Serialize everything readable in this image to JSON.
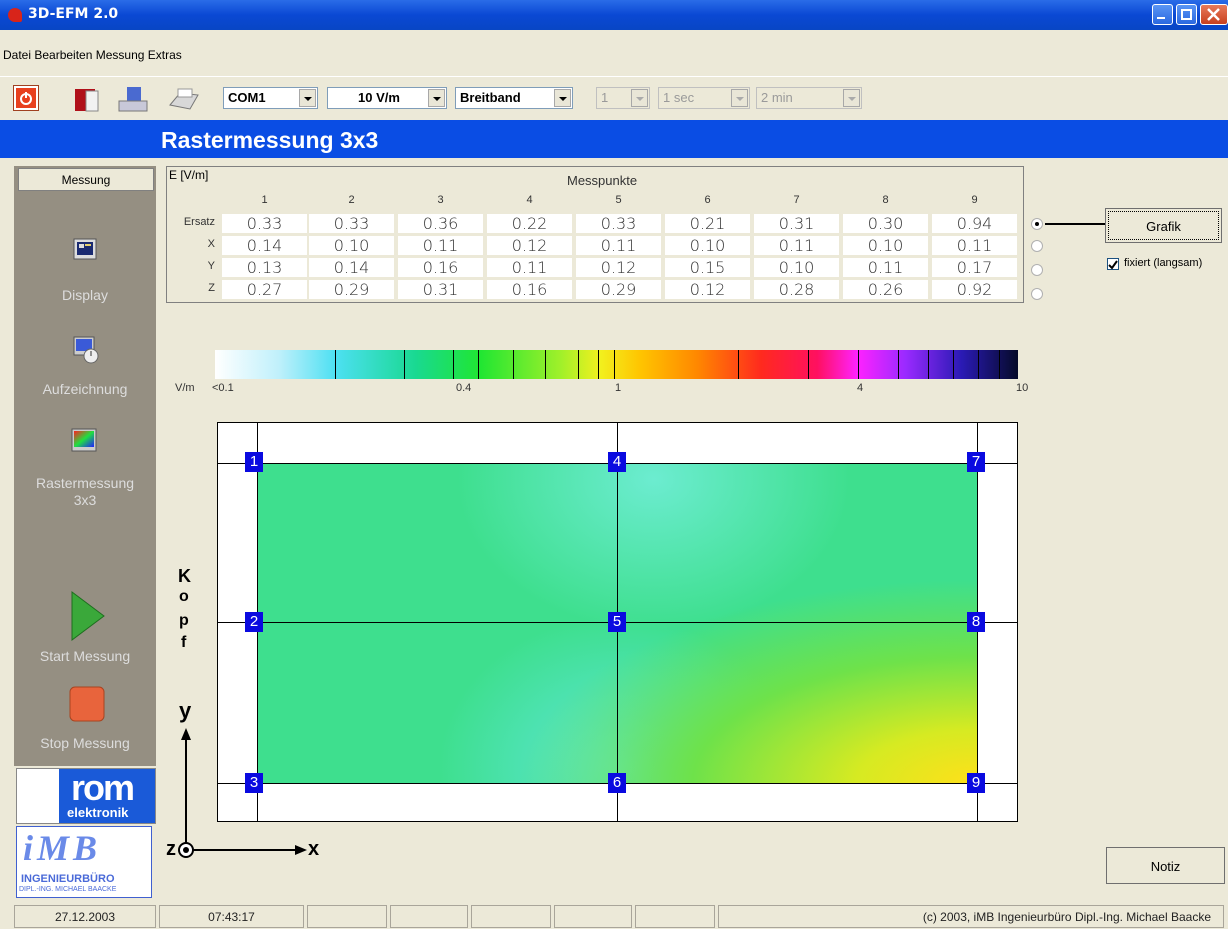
{
  "window": {
    "title": "3D-EFM 2.0"
  },
  "menu": [
    "Datei",
    "Bearbeiten",
    "Messung",
    "Extras"
  ],
  "toolbar": {
    "port": "COM1",
    "range": "10 V/m",
    "mode": "Breitband",
    "count": "1",
    "interval": "1 sec",
    "duration": "2 min"
  },
  "header": {
    "title": "Rastermessung 3x3"
  },
  "sidebar": {
    "head": "Messung",
    "display": "Display",
    "record": "Aufzeichnung",
    "grid_line1": "Rastermessung",
    "grid_line2": "3x3",
    "start": "Start Messung",
    "stop": "Stop Messung",
    "logo_rom_1": "rom",
    "logo_rom_2": "elektronik",
    "logo_imb_1": "iMB",
    "logo_imb_2": "INGENIEURBÜRO",
    "logo_imb_3": "DIPL.-ING. MICHAEL BAACKE"
  },
  "table": {
    "unit": "E [V/m]",
    "title": "Messpunkte",
    "columns": [
      "1",
      "2",
      "3",
      "4",
      "5",
      "6",
      "7",
      "8",
      "9"
    ],
    "rows": [
      {
        "label": "Ersatz",
        "values": [
          "0.33",
          "0.33",
          "0.36",
          "0.22",
          "0.33",
          "0.21",
          "0.31",
          "0.30",
          "0.94"
        ],
        "selected": true
      },
      {
        "label": "X",
        "values": [
          "0.14",
          "0.10",
          "0.11",
          "0.12",
          "0.11",
          "0.10",
          "0.11",
          "0.10",
          "0.11"
        ],
        "selected": false
      },
      {
        "label": "Y",
        "values": [
          "0.13",
          "0.14",
          "0.16",
          "0.11",
          "0.12",
          "0.15",
          "0.10",
          "0.11",
          "0.17"
        ],
        "selected": false
      },
      {
        "label": "Z",
        "values": [
          "0.27",
          "0.29",
          "0.31",
          "0.16",
          "0.29",
          "0.12",
          "0.28",
          "0.26",
          "0.92"
        ],
        "selected": false
      }
    ]
  },
  "right": {
    "grafik": "Grafik",
    "fixed": "fixiert (langsam)",
    "fixed_checked": true,
    "notiz": "Notiz"
  },
  "colorscale": {
    "unit": "V/m",
    "labels": [
      "<0.1",
      "0.4",
      "1",
      "4",
      "10"
    ]
  },
  "plot": {
    "points": [
      "1",
      "2",
      "3",
      "4",
      "5",
      "6",
      "7",
      "8",
      "9"
    ],
    "axis_kopf": [
      "K",
      "o",
      "p",
      "f"
    ],
    "axis_y": "y",
    "axis_x": "x",
    "axis_z": "z"
  },
  "status": {
    "date": "27.12.2003",
    "time": "07:43:17",
    "copyright": "(c) 2003,  iMB  Ingenieurbüro Dipl.-Ing. Michael Baacke"
  },
  "colors": {
    "titlebar": "#0a48d4",
    "headbar": "#0a4de4",
    "sidebar": "#958f82",
    "point": "#0a0ae0"
  }
}
